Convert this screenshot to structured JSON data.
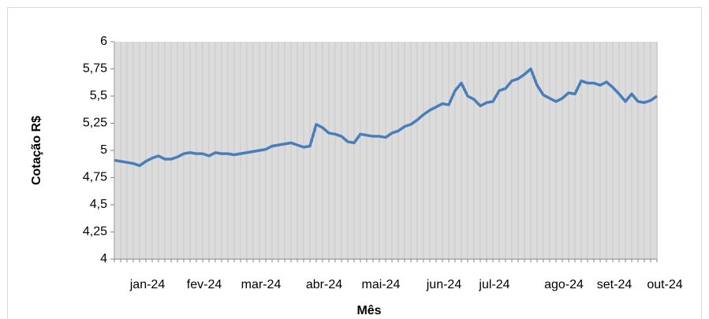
{
  "chart_data": {
    "type": "line",
    "x_label": "Mês",
    "y_label": "Cotação R$",
    "categories": [
      null,
      null,
      null,
      null,
      "jan-24",
      null,
      null,
      null,
      null,
      null,
      null,
      null,
      null,
      "fev-24",
      null,
      null,
      null,
      null,
      null,
      null,
      null,
      null,
      "mar-24",
      null,
      null,
      null,
      null,
      null,
      null,
      null,
      null,
      null,
      "abr-24",
      null,
      null,
      null,
      null,
      null,
      null,
      null,
      null,
      "mai-24",
      null,
      null,
      null,
      null,
      null,
      null,
      null,
      null,
      null,
      "jun-24",
      null,
      null,
      null,
      null,
      null,
      null,
      null,
      "jul-24",
      null,
      null,
      null,
      null,
      null,
      null,
      null,
      null,
      null,
      null,
      "ago-24",
      null,
      null,
      null,
      null,
      null,
      null,
      null,
      "set-24",
      null,
      null,
      null,
      null,
      null,
      null,
      null,
      "out-24"
    ],
    "series": [
      {
        "color": "#4a7ebb",
        "values": [
          4.91,
          4.9,
          4.89,
          4.88,
          4.86,
          4.9,
          4.93,
          4.95,
          4.92,
          4.92,
          4.94,
          4.97,
          4.98,
          4.97,
          4.97,
          4.95,
          4.98,
          4.97,
          4.97,
          4.96,
          4.97,
          4.98,
          4.99,
          5.0,
          5.01,
          5.04,
          5.05,
          5.06,
          5.07,
          5.05,
          5.03,
          5.04,
          5.24,
          5.21,
          5.16,
          5.15,
          5.13,
          5.08,
          5.07,
          5.15,
          5.14,
          5.13,
          5.13,
          5.12,
          5.16,
          5.18,
          5.22,
          5.24,
          5.28,
          5.33,
          5.37,
          5.4,
          5.43,
          5.42,
          5.55,
          5.62,
          5.5,
          5.47,
          5.41,
          5.44,
          5.45,
          5.55,
          5.57,
          5.64,
          5.66,
          5.7,
          5.75,
          5.6,
          5.51,
          5.48,
          5.45,
          5.48,
          5.53,
          5.52,
          5.64,
          5.62,
          5.62,
          5.6,
          5.63,
          5.58,
          5.52,
          5.45,
          5.52,
          5.45,
          5.44,
          5.46,
          5.5
        ]
      }
    ],
    "ylim": [
      4,
      6
    ],
    "yticks": [
      4,
      {
        "value": 4.25,
        "label": "4,25"
      },
      {
        "value": 4.5,
        "label": "4,5"
      },
      {
        "value": 4.75,
        "label": "4,75"
      },
      5,
      {
        "value": 5.25,
        "label": "5,25"
      },
      {
        "value": 5.5,
        "label": "5,5"
      },
      {
        "value": 5.75,
        "label": "5,75"
      },
      6
    ],
    "grid": "x"
  }
}
